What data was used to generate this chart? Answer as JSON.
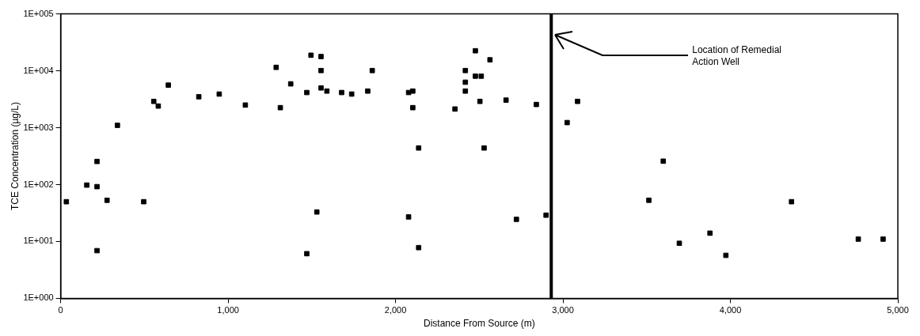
{
  "chart_data": {
    "type": "scatter",
    "xlabel": "Distance From Source (m)",
    "ylabel": "TCE Concentration (µg/L)",
    "x": [
      34,
      156,
      217,
      217,
      277,
      217,
      339,
      496,
      556,
      583,
      643,
      825,
      947,
      1103,
      1287,
      1312,
      1374,
      1470,
      1495,
      1555,
      1555,
      1555,
      1590,
      1678,
      1738,
      1834,
      1861,
      2078,
      2103,
      2103,
      2138,
      2078,
      2138,
      1470,
      1530,
      2355,
      2417,
      2417,
      2417,
      2477,
      2477,
      2512,
      2504,
      2529,
      2564,
      2660,
      2841,
      2722,
      2899,
      3087,
      3025,
      3599,
      3513,
      3695,
      3878,
      3973,
      4365,
      4764,
      4912
    ],
    "series": [
      {
        "color": "#000000",
        "values": [
          50,
          98,
          255,
          92,
          53,
          6.9,
          1100,
          50,
          2900,
          2400,
          5600,
          3500,
          3900,
          2500,
          11500,
          2250,
          5900,
          4150,
          18800,
          17800,
          10100,
          5000,
          4400,
          4150,
          3900,
          4400,
          10100,
          4150,
          4400,
          2250,
          440,
          27,
          7.8,
          6.1,
          33,
          2130,
          10100,
          6300,
          4400,
          22500,
          8050,
          8050,
          2900,
          440,
          15600,
          3050,
          2560,
          24.5,
          29,
          2900,
          1230,
          258,
          53,
          9.3,
          14,
          5.7,
          50,
          11,
          11
        ]
      }
    ],
    "xlim": [
      0,
      5000
    ],
    "xticks": [
      {
        "value": 0,
        "label": "0"
      },
      {
        "value": 1000,
        "label": "1,000"
      },
      {
        "value": 2000,
        "label": "2,000"
      },
      {
        "value": 3000,
        "label": "3,000"
      },
      {
        "value": 4000,
        "label": "4,000"
      },
      {
        "value": 5000,
        "label": "5,000"
      }
    ],
    "ylim": [
      1,
      100000
    ],
    "yticks": [
      {
        "value": 1,
        "label": "1E+000"
      },
      {
        "value": 10,
        "label": "1E+001"
      },
      {
        "value": 100,
        "label": "1E+002"
      },
      {
        "value": 1000,
        "label": "1E+003"
      },
      {
        "value": 10000,
        "label": "1E+004"
      },
      {
        "value": 100000,
        "label": "1E+005"
      }
    ],
    "log": "y",
    "grid": false,
    "legend": false,
    "marker": "square",
    "ref_lines": [
      {
        "axis": "x",
        "value": 2930,
        "label": "Location of Remedial Action Well",
        "color": "#000000"
      }
    ]
  }
}
